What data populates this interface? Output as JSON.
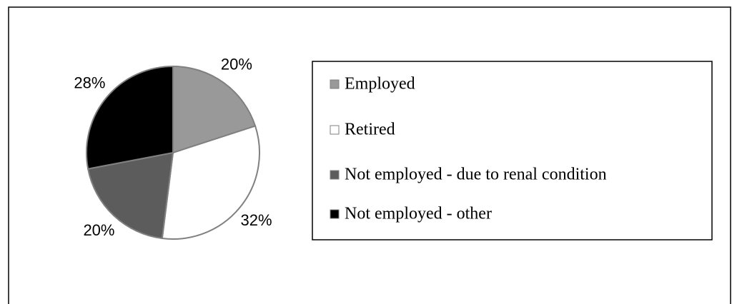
{
  "chart_data": {
    "type": "pie",
    "categories": [
      "Employed",
      "Retired",
      "Not employed - due to renal condition",
      "Not employed - other"
    ],
    "values": [
      20,
      32,
      20,
      28
    ],
    "value_labels": [
      "20%",
      "32%",
      "20%",
      "28%"
    ],
    "colors": [
      "#999999",
      "#ffffff",
      "#5c5c5c",
      "#000000"
    ],
    "legend": "right"
  }
}
